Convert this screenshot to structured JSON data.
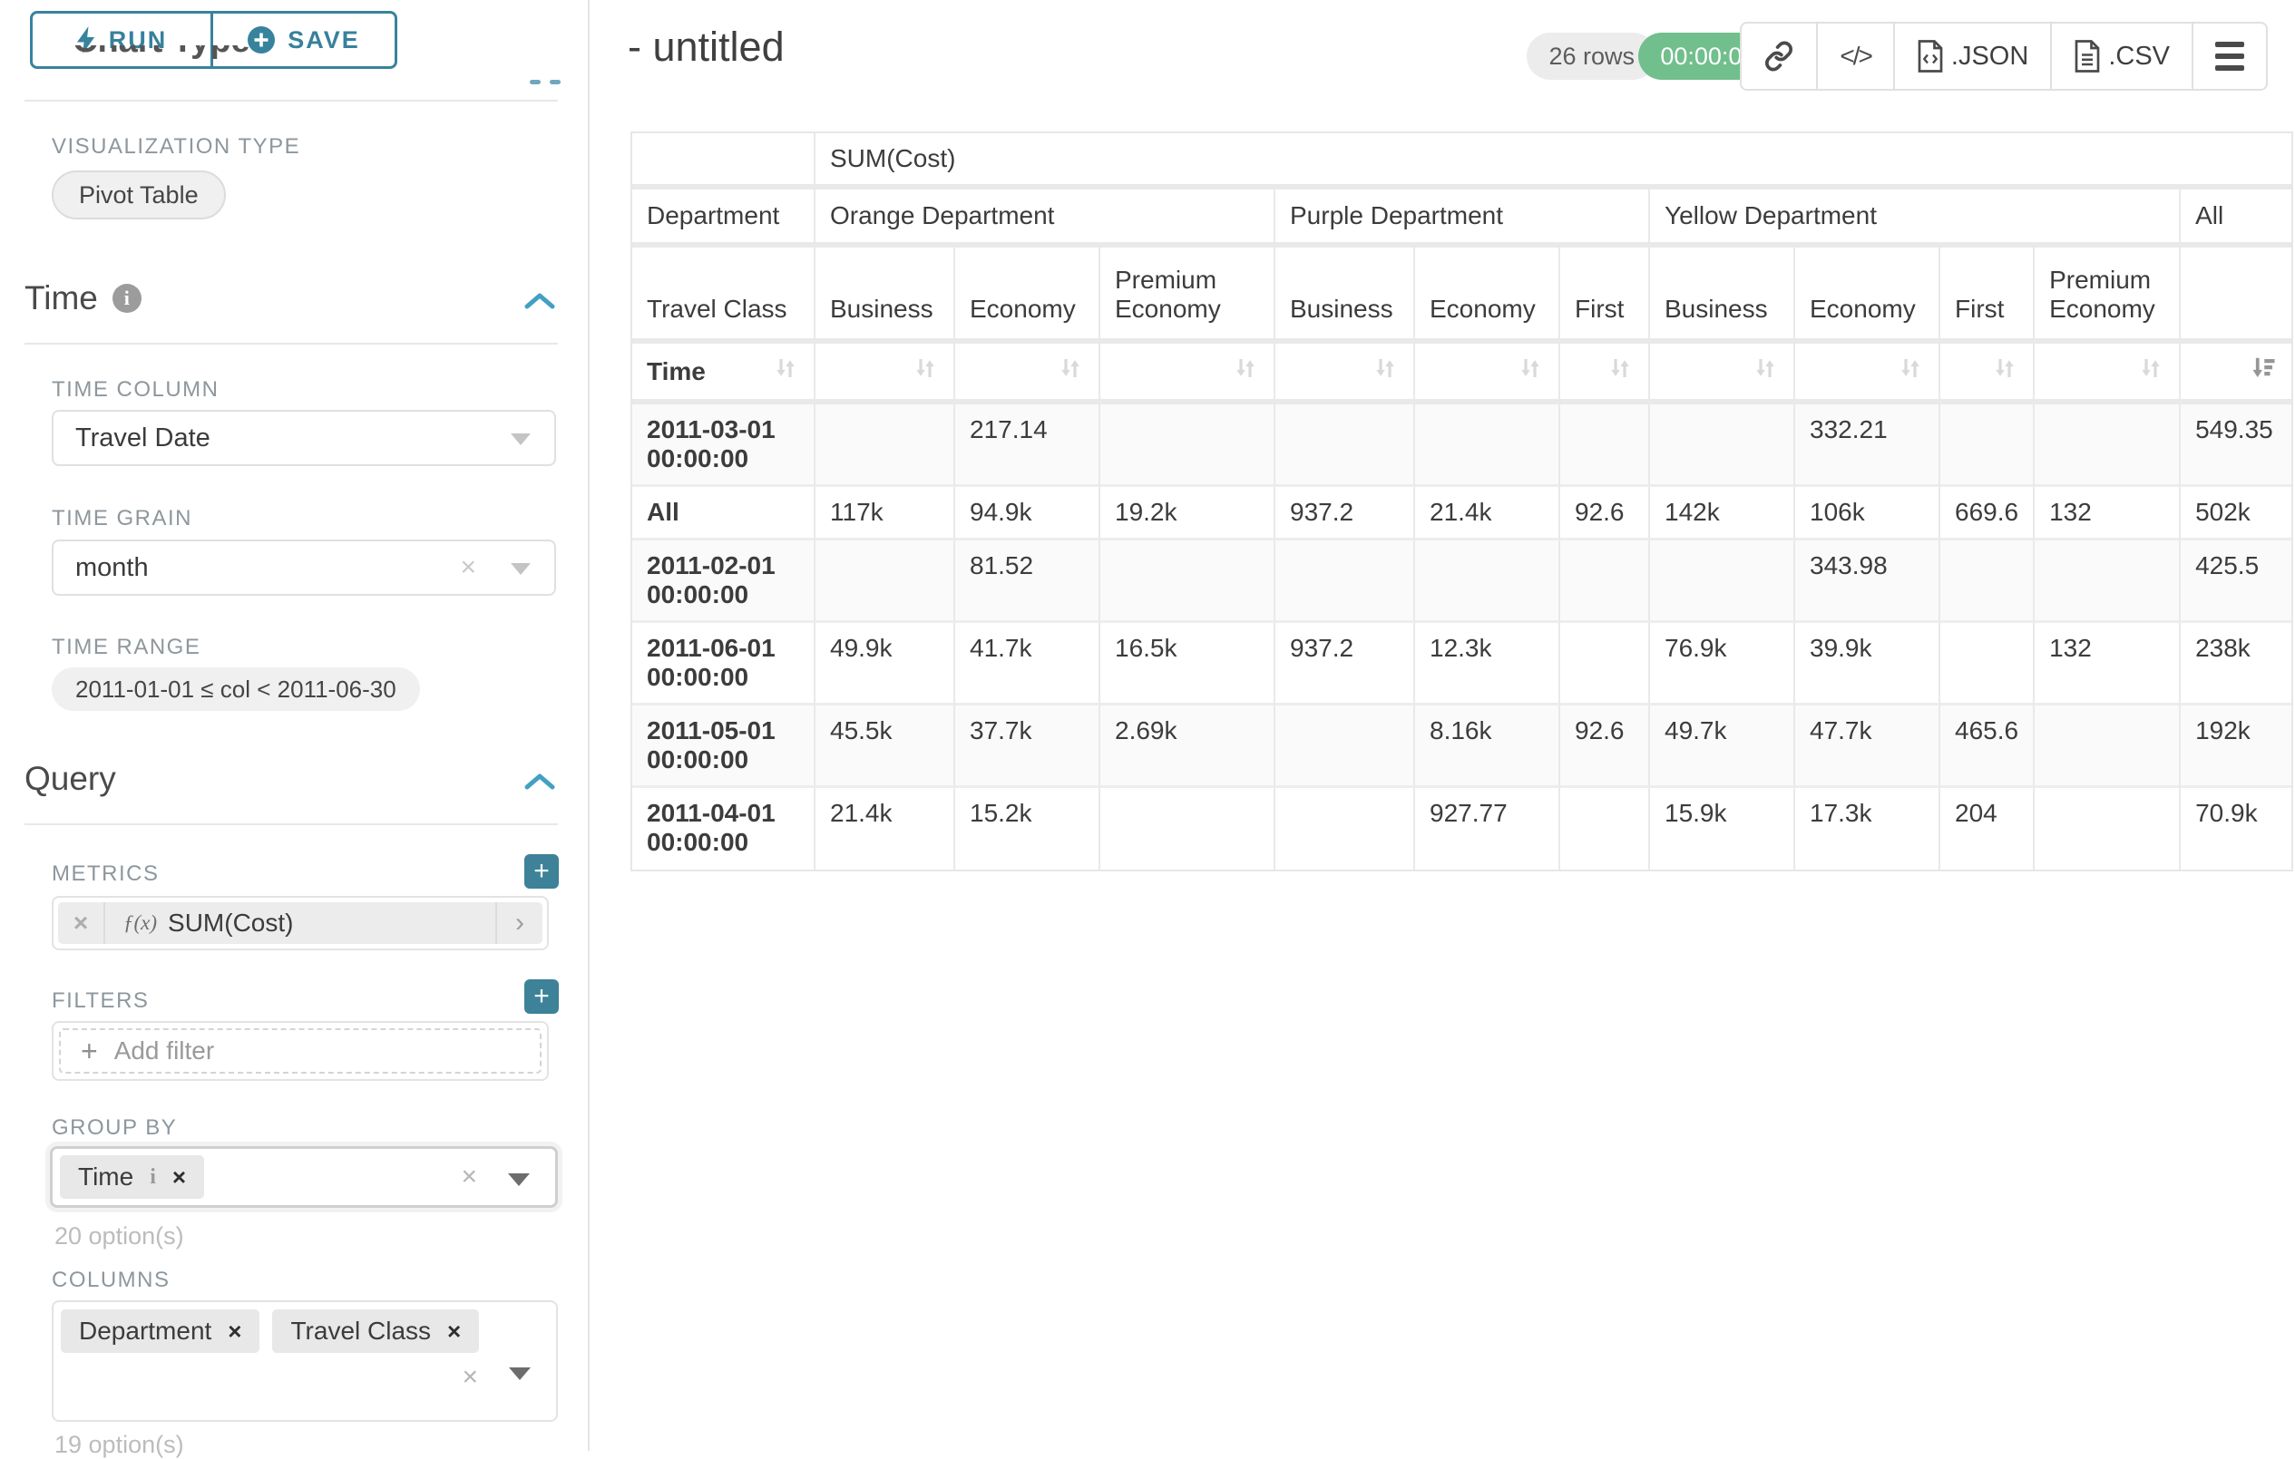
{
  "sidebar": {
    "run_label": "RUN",
    "save_label": "SAVE",
    "section_chart_type": "Chart Type",
    "viz_type_label": "VISUALIZATION TYPE",
    "viz_type_value": "Pivot Table",
    "time": {
      "section_label": "Time",
      "time_column_label": "TIME COLUMN",
      "time_column_value": "Travel Date",
      "time_grain_label": "TIME GRAIN",
      "time_grain_value": "month",
      "time_range_label": "TIME RANGE",
      "time_range_value": "2011-01-01 ≤ col < 2011-06-30"
    },
    "query": {
      "section_label": "Query",
      "metrics_label": "METRICS",
      "metric_fx": "ƒ(x)",
      "metric_value": "SUM(Cost)",
      "filters_label": "FILTERS",
      "add_filter_placeholder": "Add filter",
      "group_by_label": "GROUP BY",
      "group_by_pills": [
        {
          "label": "Time",
          "has_info": true
        }
      ],
      "group_by_options_hint": "20 option(s)",
      "columns_label": "COLUMNS",
      "columns_pills": [
        {
          "label": "Department"
        },
        {
          "label": "Travel Class"
        }
      ],
      "columns_options_hint": "19 option(s)"
    }
  },
  "header": {
    "title": "- untitled",
    "rows_badge": "26 rows",
    "timer_badge": "00:00:00.18",
    "export_json_label": ".JSON",
    "export_csv_label": ".CSV"
  },
  "colors": {
    "accent_teal": "#37839e",
    "plus_button_teal": "#3d8298",
    "success_green": "#71bf8c"
  },
  "chart_data": {
    "type": "table",
    "title": "SUM(Cost)",
    "corner_labels": {
      "department": "Department",
      "travel_class": "Travel Class",
      "time": "Time"
    },
    "column_groups": [
      {
        "label": "Orange Department",
        "children": [
          "Business",
          "Economy",
          "Premium Economy"
        ]
      },
      {
        "label": "Purple Department",
        "children": [
          "Business",
          "Economy",
          "First"
        ]
      },
      {
        "label": "Yellow Department",
        "children": [
          "Business",
          "Economy",
          "First",
          "Premium Economy"
        ]
      },
      {
        "label": "All",
        "children": [
          ""
        ]
      }
    ],
    "rows": [
      {
        "label": "2011-03-01 00:00:00",
        "values": [
          "",
          "217.14",
          "",
          "",
          "",
          "",
          "",
          "332.21",
          "",
          "",
          "549.35"
        ]
      },
      {
        "label": "All",
        "values": [
          "117k",
          "94.9k",
          "19.2k",
          "937.2",
          "21.4k",
          "92.6",
          "142k",
          "106k",
          "669.6",
          "132",
          "502k"
        ]
      },
      {
        "label": "2011-02-01 00:00:00",
        "values": [
          "",
          "81.52",
          "",
          "",
          "",
          "",
          "",
          "343.98",
          "",
          "",
          "425.5"
        ]
      },
      {
        "label": "2011-06-01 00:00:00",
        "values": [
          "49.9k",
          "41.7k",
          "16.5k",
          "937.2",
          "12.3k",
          "",
          "76.9k",
          "39.9k",
          "",
          "132",
          "238k"
        ]
      },
      {
        "label": "2011-05-01 00:00:00",
        "values": [
          "45.5k",
          "37.7k",
          "2.69k",
          "",
          "8.16k",
          "92.6",
          "49.7k",
          "47.7k",
          "465.6",
          "",
          "192k"
        ]
      },
      {
        "label": "2011-04-01 00:00:00",
        "values": [
          "21.4k",
          "15.2k",
          "",
          "",
          "927.77",
          "",
          "15.9k",
          "17.3k",
          "204",
          "",
          "70.9k"
        ]
      }
    ],
    "sorted_column": "All",
    "sort_direction": "desc"
  }
}
